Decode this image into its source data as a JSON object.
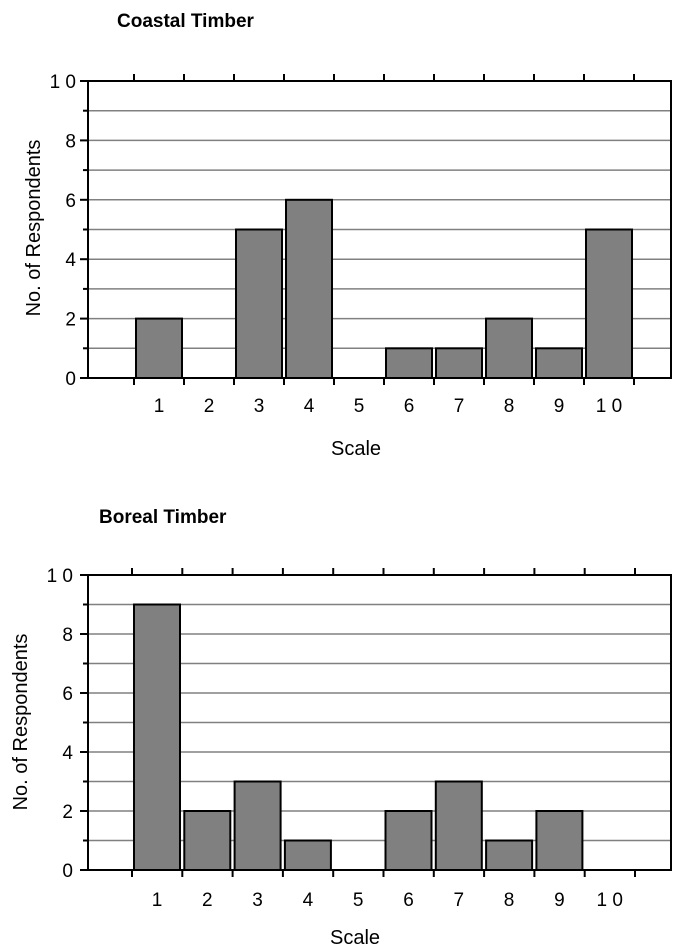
{
  "chart_data": [
    {
      "type": "bar",
      "title": "Coastal Timber",
      "xlabel": "Scale",
      "ylabel": "No. of Respondents",
      "categories": [
        "1",
        "2",
        "3",
        "4",
        "5",
        "6",
        "7",
        "8",
        "9",
        "1 0"
      ],
      "values": [
        2,
        0,
        5,
        6,
        0,
        1,
        1,
        2,
        1,
        5
      ],
      "ylim": [
        0,
        10
      ],
      "yticks": [
        "0",
        "2",
        "4",
        "6",
        "8",
        "1 0"
      ],
      "grid": true,
      "colors": {
        "bar": "#808080",
        "gridline": "#808080"
      }
    },
    {
      "type": "bar",
      "title": "Boreal Timber",
      "xlabel": "Scale",
      "ylabel": "No. of Respondents",
      "categories": [
        "1",
        "2",
        "3",
        "4",
        "5",
        "6",
        "7",
        "8",
        "9",
        "1 0"
      ],
      "values": [
        9,
        2,
        3,
        1,
        0,
        2,
        3,
        1,
        2,
        0
      ],
      "ylim": [
        0,
        10
      ],
      "yticks": [
        "0",
        "2",
        "4",
        "6",
        "8",
        "1 0"
      ],
      "grid": true,
      "colors": {
        "bar": "#808080",
        "gridline": "#808080"
      }
    }
  ]
}
